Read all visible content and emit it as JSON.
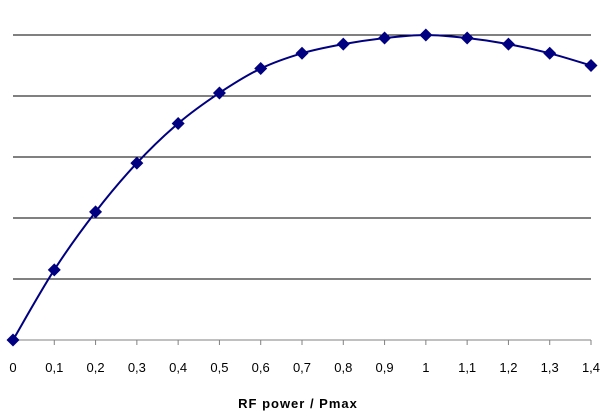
{
  "chart_data": {
    "type": "line",
    "title": "",
    "xlabel": "RF power / Pmax",
    "ylabel": "",
    "xlim": [
      0,
      1.4
    ],
    "ylim": [
      0,
      1
    ],
    "grid": "horizontal",
    "y_gridlines": [
      0.2,
      0.4,
      0.6,
      0.8,
      1.0
    ],
    "x_tick_labels": [
      "0",
      "0,1",
      "0,2",
      "0,3",
      "0,4",
      "0,5",
      "0,6",
      "0,7",
      "0,8",
      "0,9",
      "1",
      "1,1",
      "1,2",
      "1,3",
      "1,4"
    ],
    "marker": "diamond",
    "colors": {
      "series": "#000080",
      "grid": "#000000",
      "axis": "#808080"
    },
    "series": [
      {
        "x": [
          0,
          0.1,
          0.2,
          0.3,
          0.4,
          0.5,
          0.6,
          0.7,
          0.8,
          0.9,
          1.0,
          1.1,
          1.2,
          1.3,
          1.4
        ],
        "values": [
          0,
          0.23,
          0.42,
          0.58,
          0.71,
          0.81,
          0.89,
          0.94,
          0.97,
          0.99,
          1.0,
          0.99,
          0.97,
          0.94,
          0.9
        ]
      }
    ]
  }
}
